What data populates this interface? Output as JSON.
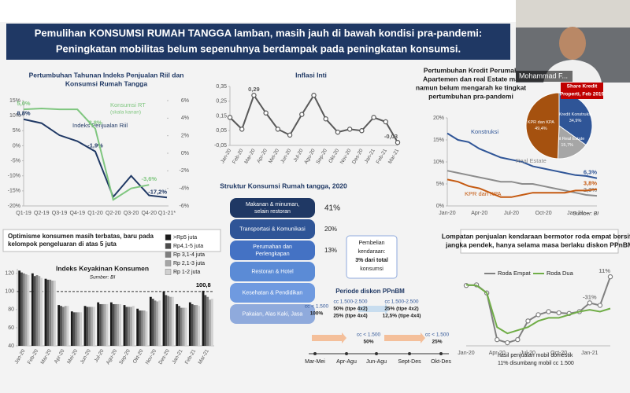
{
  "header": {
    "title": [
      "Pemulihan KONSUMSI RUMAH TANGGA lamban, masih jauh di bawah kondisi pra-pandemi:",
      "Peningkatan mobilitas belum sepenuhnya berdampak pada peningkatan konsumsi."
    ]
  },
  "presenter": {
    "name": "Mohammad F..."
  },
  "chart_data": [
    {
      "type": "line",
      "title": [
        "Pertumbuhan Tahunan Indeks Penjualan Riil dan",
        "Konsumsi Rumah Tangga"
      ],
      "categories": [
        "Q1-19",
        "Q2-19",
        "Q3-19",
        "Q4-19",
        "Q1-20",
        "Q2-20",
        "Q3-20",
        "Q4-20",
        "Q1-21*"
      ],
      "ylim": [
        -20,
        15
      ],
      "yticks": [
        {
          "value": 15,
          "label": "15%"
        },
        {
          "value": 10,
          "label": "10%"
        },
        {
          "value": 5,
          "label": "5%"
        },
        {
          "value": 0,
          "label": "0%"
        },
        {
          "value": -5,
          "label": "-5%"
        },
        {
          "value": -10,
          "label": "-10%"
        },
        {
          "value": -15,
          "label": "-15%"
        },
        {
          "value": -20,
          "label": "-20%"
        }
      ],
      "y2lim": [
        -6,
        6
      ],
      "y2ticks": [
        {
          "value": 6,
          "label": "6%"
        },
        {
          "value": 4,
          "label": "4%"
        },
        {
          "value": 2,
          "label": "2%"
        },
        {
          "value": 0,
          "label": "0%"
        },
        {
          "value": -2,
          "label": "-2%"
        },
        {
          "value": -4,
          "label": "-4%"
        },
        {
          "value": -6,
          "label": "-6%"
        }
      ],
      "grid": false,
      "series": [
        {
          "name": "Indeks Penjualan Riil",
          "color": "#1f3864",
          "values": [
            8.8,
            7.5,
            3.5,
            1.5,
            -1.9,
            -17,
            -10,
            -16.5,
            -17.2
          ],
          "value_labels": [
            "8,8%",
            null,
            null,
            null,
            "-1,9%",
            null,
            null,
            null,
            "-17,2%"
          ]
        },
        {
          "name": "Konsumsi RT",
          "note": "(skala kanan)",
          "color": "#7fc67f",
          "axis": "y2",
          "values": [
            5.0,
            5.1,
            5.0,
            5.0,
            2.8,
            -5.3,
            -4.0,
            -3.6,
            null
          ],
          "value_labels": [
            "5,0%",
            null,
            null,
            null,
            "2,8%",
            null,
            null,
            "-3,6%",
            null
          ]
        }
      ]
    },
    {
      "type": "line",
      "title": [
        "Inflasi Inti"
      ],
      "categories": [
        "Jan-20",
        "Feb-20",
        "Mar-20",
        "Apr-20",
        "Mei-20",
        "Jun-20",
        "Jul-20",
        "Agu-20",
        "Sep-20",
        "Okt-20",
        "Nov-20",
        "Des-20",
        "Jan-21",
        "Feb-21",
        "Mar-21"
      ],
      "ylim": [
        -0.05,
        0.35
      ],
      "yticks": [
        {
          "value": 0.35,
          "label": "0,35"
        },
        {
          "value": 0.25,
          "label": "0,25"
        },
        {
          "value": 0.15,
          "label": "0,15"
        },
        {
          "value": 0.05,
          "label": "0,05"
        },
        {
          "value": -0.05,
          "label": "-0,05"
        }
      ],
      "grid": false,
      "series": [
        {
          "name": "Inflasi Inti",
          "color": "#595959",
          "markers": true,
          "values": [
            0.14,
            0.06,
            0.29,
            0.17,
            0.06,
            0.02,
            0.16,
            0.29,
            0.13,
            0.04,
            0.06,
            0.05,
            0.14,
            0.11,
            -0.03
          ],
          "value_labels": [
            null,
            null,
            "0,29",
            null,
            null,
            null,
            null,
            null,
            null,
            null,
            null,
            null,
            null,
            null,
            "-0,03"
          ]
        }
      ]
    },
    {
      "type": "line",
      "title": [
        "Pertumbuhan Kredit Perumah",
        "Apartemen dan real Estate ma",
        "namun belum mengarah ke tingkat",
        "pertumbuhan pra-pandemi"
      ],
      "categories": [
        "Jan-20",
        null,
        null,
        "Apr-20",
        null,
        null,
        "Jul-20",
        null,
        null,
        "Oct-20",
        null,
        null,
        "Jan-21",
        null,
        null
      ],
      "ylim": [
        0,
        20
      ],
      "yticks": [
        {
          "value": 20,
          "label": "20%"
        },
        {
          "value": 15,
          "label": "15%"
        },
        {
          "value": 10,
          "label": "10%"
        },
        {
          "value": 5,
          "label": "5%"
        },
        {
          "value": 0,
          "label": "0%"
        }
      ],
      "grid": false,
      "source": "Sumber: BI",
      "series": [
        {
          "name": "Konstruksi",
          "color": "#2f5597",
          "values": [
            16.5,
            15,
            14.5,
            13,
            12,
            11,
            10.5,
            10,
            9,
            8.5,
            8,
            7.5,
            7,
            6.8,
            6.3
          ],
          "value_labels": [
            null,
            null,
            null,
            null,
            null,
            null,
            null,
            null,
            null,
            null,
            null,
            null,
            null,
            null,
            "6,3%"
          ]
        },
        {
          "name": "Real Estate",
          "color": "#8c8c8c",
          "values": [
            8,
            7.5,
            7,
            6.5,
            6,
            5.5,
            5.5,
            5,
            5,
            4.5,
            4,
            3.5,
            3,
            2.5,
            2.3
          ],
          "value_labels": [
            null,
            null,
            null,
            null,
            null,
            null,
            null,
            null,
            null,
            null,
            null,
            null,
            null,
            null,
            "2,3%"
          ]
        },
        {
          "name": "KPR dan KPA",
          "color": "#c55a11",
          "values": [
            6,
            5.5,
            4.5,
            4,
            3,
            2,
            2,
            2.5,
            3,
            3,
            3,
            3,
            3.5,
            3.5,
            3.8
          ],
          "value_labels": [
            null,
            null,
            null,
            null,
            null,
            null,
            null,
            null,
            null,
            null,
            null,
            null,
            null,
            null,
            "3,8%"
          ]
        }
      ]
    },
    {
      "type": "bar",
      "heading": [
        "Optimisme konsumen masih terbatas, baru pada",
        "kelompok pengeluaran di atas 5 juta"
      ],
      "title": [
        "Indeks Keyakinan Konsumen"
      ],
      "source": "Sumber: BI",
      "categories": [
        "Jan-20",
        "Feb-20",
        "Mar-20",
        "Apr-20",
        "Mei-20",
        "Jun-20",
        "Jul-20",
        "Agu-20",
        "Sep-20",
        "Okt-20",
        "Nov-20",
        "Des-20",
        "Jan-21",
        "Feb-21",
        "Mar-21"
      ],
      "ylim": [
        40,
        125
      ],
      "yticks": [
        40,
        60,
        80,
        100,
        120
      ],
      "grid": false,
      "reference": 100,
      "series": [
        {
          "name": ">Rp5 juta",
          "color": "#1a1a1a",
          "values": [
            123,
            120,
            114,
            85,
            78,
            84,
            88,
            88,
            85,
            81,
            94,
            100,
            86,
            88,
            100.8
          ],
          "value_labels": [
            null,
            null,
            null,
            null,
            null,
            null,
            null,
            null,
            null,
            null,
            null,
            null,
            null,
            null,
            "100,8"
          ]
        },
        {
          "name": "Rp4,1-5 juta",
          "color": "#4d4d4d",
          "values": [
            121,
            117,
            113,
            84,
            77,
            83,
            86,
            86,
            83,
            79,
            92,
            96,
            84,
            86,
            96
          ]
        },
        {
          "name": "Rp 3,1-4 juta",
          "color": "#7f7f7f",
          "values": [
            120,
            118,
            113,
            83,
            77,
            83,
            86,
            86,
            83,
            79,
            90,
            95,
            82,
            85,
            94
          ]
        },
        {
          "name": "Rp 2,1-3 juta",
          "color": "#a6a6a6",
          "values": [
            119,
            117,
            112,
            84,
            77,
            83,
            86,
            86,
            83,
            79,
            89,
            94,
            82,
            85,
            91
          ]
        },
        {
          "name": "Rp 1-2 juta",
          "color": "#d0d0d0",
          "values": [
            118,
            115,
            112,
            84,
            77,
            83,
            86,
            86,
            84,
            78,
            90,
            94,
            82,
            84,
            92
          ]
        }
      ]
    },
    {
      "type": "line",
      "title": [
        "Lompatan penjualan kendaraan bermotor roda empat bersifat",
        "jangka pendek, hanya selama masa berlaku diskon PPnBM"
      ],
      "categories": [
        "Jan-20",
        null,
        null,
        "Apr-20",
        null,
        null,
        "Jul-20",
        null,
        null,
        "Oct-20",
        null,
        null,
        "Jan-21",
        null,
        null
      ],
      "ylim": [
        -100,
        20
      ],
      "notes": [
        "hasil penjualan mobil domestik",
        "11% disumbang mobil cc 1.500"
      ],
      "series": [
        {
          "name": "Roda Empat",
          "color": "#808080",
          "markers": true,
          "values": [
            -3,
            -2,
            -15,
            -90,
            -95,
            -90,
            -60,
            -50,
            -45,
            -47,
            -48,
            -45,
            -31,
            -35,
            11
          ],
          "value_labels": [
            null,
            null,
            null,
            null,
            null,
            null,
            null,
            null,
            null,
            null,
            null,
            null,
            "-31%",
            null,
            "11%"
          ]
        },
        {
          "name": "Roda Dua",
          "color": "#70ad47",
          "values": [
            -2,
            -3,
            -15,
            -70,
            -80,
            -75,
            -70,
            -60,
            -55,
            -55,
            -50,
            -45,
            -42,
            -45,
            -40
          ]
        }
      ]
    }
  ],
  "pie": {
    "title": [
      "Share Kredit",
      "Properti, Feb 2019"
    ],
    "names": [
      "Kredit Konstruksi",
      "Kredit Real Estate",
      "KPR dan KPA"
    ],
    "values": [
      34.9,
      15.7,
      49.4
    ],
    "value_labels": [
      "34,9%",
      "15,7%",
      "49,4%"
    ],
    "colors": [
      "#2f5597",
      "#a6a6a6",
      "#a5510f"
    ]
  },
  "structure": {
    "title": "Struktur Konsumsi Rumah tangga, 2020",
    "layers": [
      {
        "label": [
          "Makanan & minuman,",
          "selain restoran"
        ],
        "share": "41%"
      },
      {
        "label": [
          "Transportasi & Komunikasi"
        ],
        "share": "20%"
      },
      {
        "label": [
          "Perumahan dan",
          "Perlengkapan"
        ],
        "share": "13%"
      },
      {
        "label": [
          "Restoran & Hotel"
        ]
      },
      {
        "label": [
          "Kesehatan & Pendidikan"
        ]
      },
      {
        "label": [
          "Pakaian, Alas Kaki, Jasa"
        ]
      }
    ],
    "callout": [
      "Pembelian",
      "kendaraan:",
      "3% dari total",
      "konsumsi"
    ]
  },
  "timeline": {
    "title": "Periode diskon PPnBM",
    "dates": [
      "Mar-Mei",
      "Apr-Agu",
      "Jun-Agu",
      "Sept-Des",
      "Okt-Des"
    ],
    "boxes": [
      [
        "cc < 1.500",
        "100%"
      ],
      [
        "cc 1.500-2.500",
        "50% (tipe 4x2)",
        "25% (tipe 4x4)"
      ],
      [
        "cc 1.500-2.500",
        "25% (tipe 4x2)",
        "12,5% (tipe 4x4)"
      ],
      [
        "cc < 1.500",
        "50%"
      ],
      [
        "cc < 1.500",
        "25%"
      ]
    ]
  }
}
